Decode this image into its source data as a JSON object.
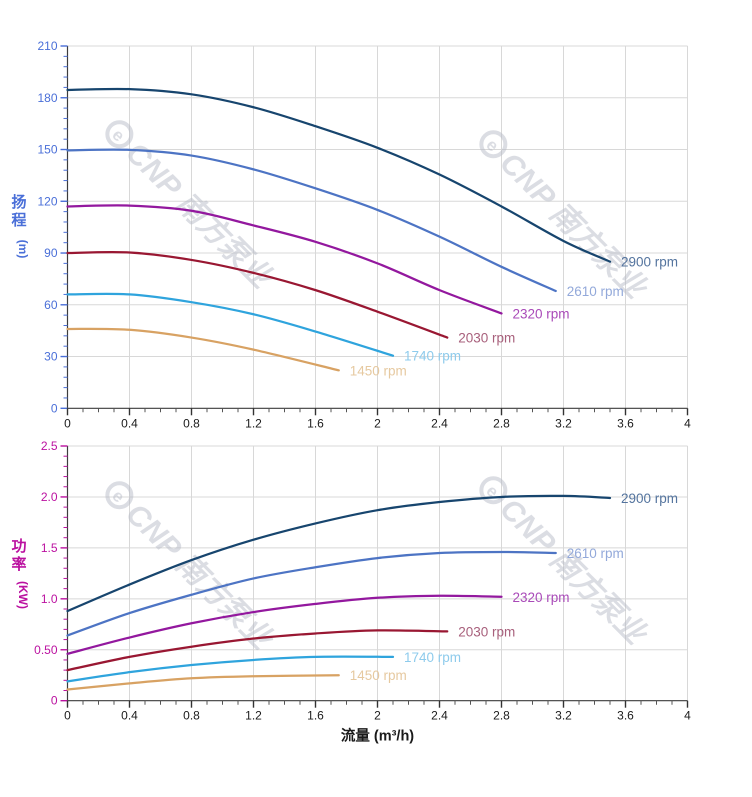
{
  "style": {
    "background": "#ffffff",
    "grid_color": "#d8d8d8",
    "spine_color": "#3c3c3c",
    "x_tick_color": "#333333",
    "x_label_color": "#1a1a1a"
  },
  "watermark": {
    "logo_glyph": "e",
    "brand": "CNP 南方泵业",
    "color": "#b8bcc8",
    "opacity": 0.5
  },
  "flow_axis_title": "流量 (m³/h)",
  "chart_data": [
    {
      "id": "head",
      "type": "line",
      "title": "",
      "ylabel": "扬程",
      "ylabel_unit": "(m)",
      "xlabel": "",
      "xlim": [
        0,
        4
      ],
      "ylim": [
        0,
        210
      ],
      "grid": true,
      "legend_position": "curve-ends",
      "axis_color": "#4a6fd8",
      "x_tick_values": [
        0,
        0.4,
        0.8,
        1.2,
        1.6,
        2,
        2.4,
        2.8,
        3.2,
        3.6,
        4
      ],
      "x_ticks": [
        "0",
        "0.4",
        "0.8",
        "1.2",
        "1.6",
        "2",
        "2.4",
        "2.8",
        "3.2",
        "3.6",
        "4"
      ],
      "y_tick_values": [
        0,
        30,
        60,
        90,
        120,
        150,
        180,
        210
      ],
      "y_ticks": [
        "0",
        "30",
        "60",
        "90",
        "120",
        "150",
        "180",
        "210"
      ],
      "x_minor_step": 0.1,
      "y_minor_step": 6,
      "series": [
        {
          "name": "2900rpm",
          "label": "2900 rpm",
          "color": "#17456e",
          "label_color": "#54749e",
          "points": [
            [
              0,
              184.5
            ],
            [
              0.4,
              185
            ],
            [
              0.8,
              182
            ],
            [
              1.2,
              174.5
            ],
            [
              1.6,
              163.5
            ],
            [
              2.0,
              151
            ],
            [
              2.4,
              135.5
            ],
            [
              2.8,
              117
            ],
            [
              3.2,
              97
            ],
            [
              3.5,
              85
            ]
          ]
        },
        {
          "name": "2610rpm",
          "label": "2610 rpm",
          "color": "#4d74c4",
          "label_color": "#93a9da",
          "points": [
            [
              0,
              149.5
            ],
            [
              0.4,
              149.8
            ],
            [
              0.8,
              146.5
            ],
            [
              1.2,
              138.5
            ],
            [
              1.6,
              127.5
            ],
            [
              2.0,
              115
            ],
            [
              2.4,
              99.5
            ],
            [
              2.8,
              82
            ],
            [
              3.15,
              68
            ]
          ]
        },
        {
          "name": "2320rpm",
          "label": "2320 rpm",
          "color": "#93189e",
          "label_color": "#a94ab8",
          "points": [
            [
              0,
              117
            ],
            [
              0.4,
              117.5
            ],
            [
              0.8,
              114.5
            ],
            [
              1.2,
              106
            ],
            [
              1.6,
              96.5
            ],
            [
              2.0,
              84
            ],
            [
              2.4,
              68.5
            ],
            [
              2.8,
              55
            ]
          ]
        },
        {
          "name": "2030rpm",
          "label": "2030 rpm",
          "color": "#991732",
          "label_color": "#a8607c",
          "points": [
            [
              0,
              90
            ],
            [
              0.4,
              90.3
            ],
            [
              0.8,
              86
            ],
            [
              1.2,
              78.5
            ],
            [
              1.6,
              68.5
            ],
            [
              2.0,
              56
            ],
            [
              2.45,
              41
            ]
          ]
        },
        {
          "name": "1740rpm",
          "label": "1740 rpm",
          "color": "#2fa4dd",
          "label_color": "#8ecbec",
          "points": [
            [
              0,
              66
            ],
            [
              0.4,
              66
            ],
            [
              0.8,
              61.5
            ],
            [
              1.2,
              54.5
            ],
            [
              1.6,
              44.5
            ],
            [
              2.1,
              30.5
            ]
          ]
        },
        {
          "name": "1450rpm",
          "label": "1450 rpm",
          "color": "#d8a263",
          "label_color": "#e6c9a0",
          "points": [
            [
              0,
              46
            ],
            [
              0.4,
              45.5
            ],
            [
              0.8,
              41
            ],
            [
              1.2,
              34
            ],
            [
              1.75,
              22
            ]
          ]
        }
      ]
    },
    {
      "id": "power",
      "type": "line",
      "title": "",
      "ylabel": "功率",
      "ylabel_unit": "(KW)",
      "xlabel": "流量 (m³/h)",
      "xlim": [
        0,
        4
      ],
      "ylim": [
        0,
        2.5
      ],
      "grid": true,
      "legend_position": "curve-ends",
      "axis_color": "#bb11a0",
      "x_tick_values": [
        0,
        0.4,
        0.8,
        1.2,
        1.6,
        2,
        2.4,
        2.8,
        3.2,
        3.6,
        4
      ],
      "x_ticks": [
        "0",
        "0.4",
        "0.8",
        "1.2",
        "1.6",
        "2",
        "2.4",
        "2.8",
        "3.2",
        "3.6",
        "4"
      ],
      "y_tick_values": [
        0,
        0.5,
        1.0,
        1.5,
        2.0,
        2.5
      ],
      "y_ticks": [
        "0",
        "0.50",
        "1.0",
        "1.5",
        "2.0",
        "2.5"
      ],
      "x_minor_step": 0.1,
      "y_minor_step": 0.1,
      "series": [
        {
          "name": "2900rpm",
          "label": "2900 rpm",
          "color": "#17456e",
          "label_color": "#54749e",
          "points": [
            [
              0,
              0.88
            ],
            [
              0.4,
              1.14
            ],
            [
              0.8,
              1.38
            ],
            [
              1.2,
              1.58
            ],
            [
              1.6,
              1.74
            ],
            [
              2.0,
              1.87
            ],
            [
              2.4,
              1.95
            ],
            [
              2.8,
              2.0
            ],
            [
              3.2,
              2.01
            ],
            [
              3.5,
              1.99
            ]
          ]
        },
        {
          "name": "2610rpm",
          "label": "2610 rpm",
          "color": "#4d74c4",
          "label_color": "#93a9da",
          "points": [
            [
              0,
              0.64
            ],
            [
              0.4,
              0.86
            ],
            [
              0.8,
              1.04
            ],
            [
              1.2,
              1.2
            ],
            [
              1.6,
              1.31
            ],
            [
              2.0,
              1.4
            ],
            [
              2.4,
              1.45
            ],
            [
              2.8,
              1.46
            ],
            [
              3.15,
              1.45
            ]
          ]
        },
        {
          "name": "2320rpm",
          "label": "2320 rpm",
          "color": "#93189e",
          "label_color": "#a94ab8",
          "points": [
            [
              0,
              0.46
            ],
            [
              0.4,
              0.62
            ],
            [
              0.8,
              0.76
            ],
            [
              1.2,
              0.87
            ],
            [
              1.6,
              0.95
            ],
            [
              2.0,
              1.01
            ],
            [
              2.4,
              1.03
            ],
            [
              2.8,
              1.02
            ]
          ]
        },
        {
          "name": "2030rpm",
          "label": "2030 rpm",
          "color": "#991732",
          "label_color": "#a8607c",
          "points": [
            [
              0,
              0.3
            ],
            [
              0.4,
              0.43
            ],
            [
              0.8,
              0.53
            ],
            [
              1.2,
              0.61
            ],
            [
              1.6,
              0.66
            ],
            [
              2.0,
              0.69
            ],
            [
              2.45,
              0.68
            ]
          ]
        },
        {
          "name": "1740rpm",
          "label": "1740 rpm",
          "color": "#2fa4dd",
          "label_color": "#8ecbec",
          "points": [
            [
              0,
              0.19
            ],
            [
              0.4,
              0.28
            ],
            [
              0.8,
              0.35
            ],
            [
              1.2,
              0.4
            ],
            [
              1.6,
              0.43
            ],
            [
              2.1,
              0.43
            ]
          ]
        },
        {
          "name": "1450rpm",
          "label": "1450 rpm",
          "color": "#d8a263",
          "label_color": "#e6c9a0",
          "points": [
            [
              0,
              0.11
            ],
            [
              0.4,
              0.17
            ],
            [
              0.8,
              0.22
            ],
            [
              1.2,
              0.24
            ],
            [
              1.75,
              0.25
            ]
          ]
        }
      ]
    }
  ]
}
